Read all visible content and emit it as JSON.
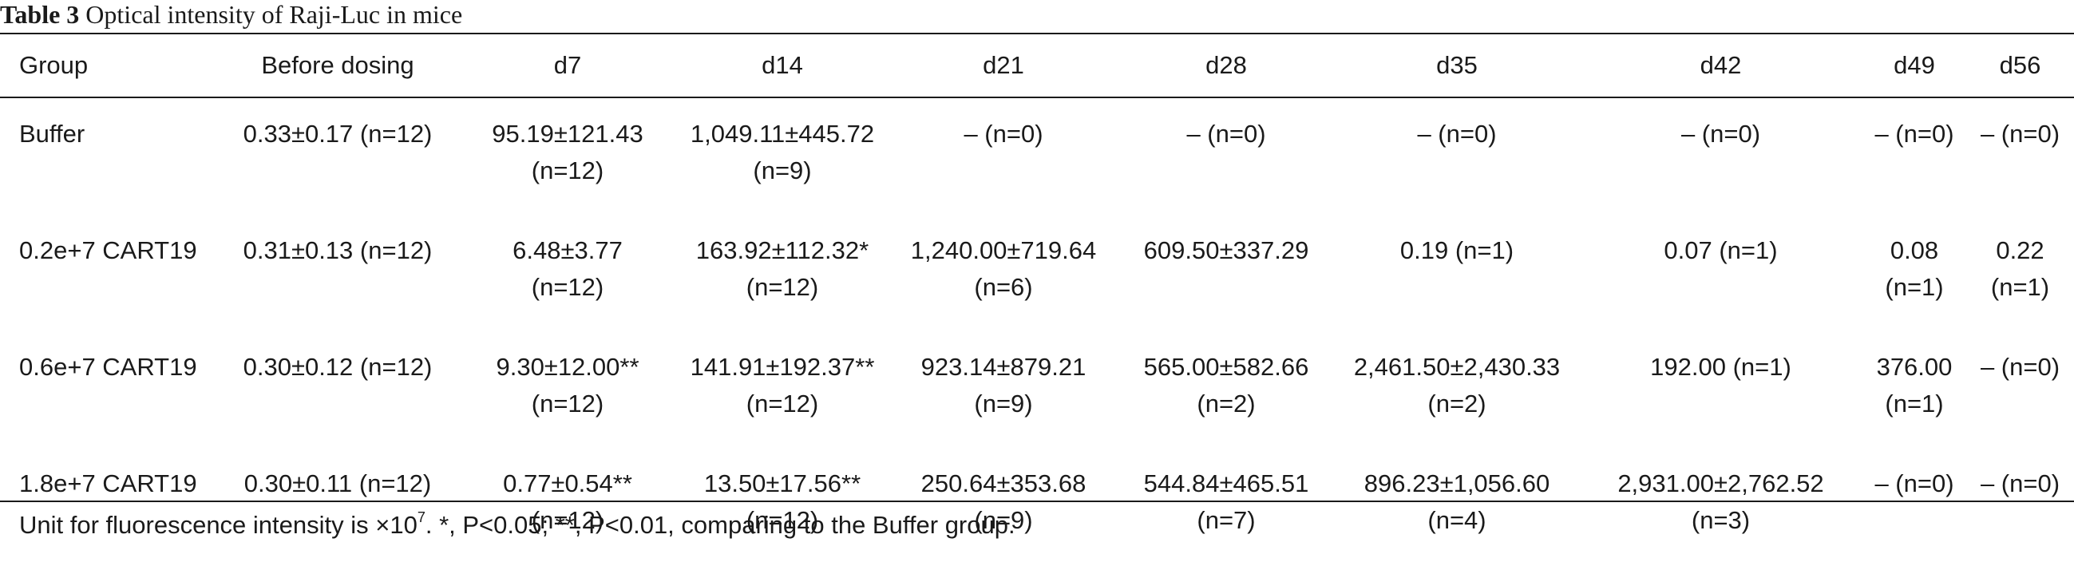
{
  "caption": {
    "label": "Table 3",
    "title": "Optical intensity of Raji-Luc in mice"
  },
  "columns": [
    "Group",
    "Before dosing",
    "d7",
    "d14",
    "d21",
    "d28",
    "d35",
    "d42",
    "d49",
    "d56"
  ],
  "rows": [
    {
      "group": "Buffer",
      "cells": [
        [
          "0.33±0.17 (n=12)"
        ],
        [
          "95.19±121.43",
          "(n=12)"
        ],
        [
          "1,049.11±445.72",
          "(n=9)"
        ],
        [
          "– (n=0)"
        ],
        [
          "– (n=0)"
        ],
        [
          "– (n=0)"
        ],
        [
          "– (n=0)"
        ],
        [
          "– (n=0)"
        ],
        [
          "– (n=0)"
        ]
      ]
    },
    {
      "group": "0.2e+7 CART19",
      "cells": [
        [
          "0.31±0.13 (n=12)"
        ],
        [
          "6.48±3.77",
          "(n=12)"
        ],
        [
          "163.92±112.32*",
          "(n=12)"
        ],
        [
          "1,240.00±719.64",
          "(n=6)"
        ],
        [
          "609.50±337.29"
        ],
        [
          "0.19 (n=1)"
        ],
        [
          "0.07 (n=1)"
        ],
        [
          "0.08",
          "(n=1)"
        ],
        [
          "0.22",
          "(n=1)"
        ]
      ]
    },
    {
      "group": "0.6e+7 CART19",
      "cells": [
        [
          "0.30±0.12 (n=12)"
        ],
        [
          "9.30±12.00**",
          "(n=12)"
        ],
        [
          "141.91±192.37**",
          "(n=12)"
        ],
        [
          "923.14±879.21",
          "(n=9)"
        ],
        [
          "565.00±582.66",
          "(n=2)"
        ],
        [
          "2,461.50±2,430.33",
          "(n=2)"
        ],
        [
          "192.00 (n=1)"
        ],
        [
          "376.00",
          "(n=1)"
        ],
        [
          "– (n=0)"
        ]
      ]
    },
    {
      "group": "1.8e+7 CART19",
      "cells": [
        [
          "0.30±0.11 (n=12)"
        ],
        [
          "0.77±0.54**",
          "(n=12)"
        ],
        [
          "13.50±17.56**",
          "(n=12)"
        ],
        [
          "250.64±353.68",
          "(n=9)"
        ],
        [
          "544.84±465.51",
          "(n=7)"
        ],
        [
          "896.23±1,056.60",
          "(n=4)"
        ],
        [
          "2,931.00±2,762.52",
          "(n=3)"
        ],
        [
          "– (n=0)"
        ],
        [
          "– (n=0)"
        ]
      ]
    }
  ],
  "footnote": {
    "before": "Unit for fluorescence intensity is ×10",
    "exponent": "7",
    "after": ". *, P<0.05; **, P<0.01, comparing to the Buffer group."
  }
}
